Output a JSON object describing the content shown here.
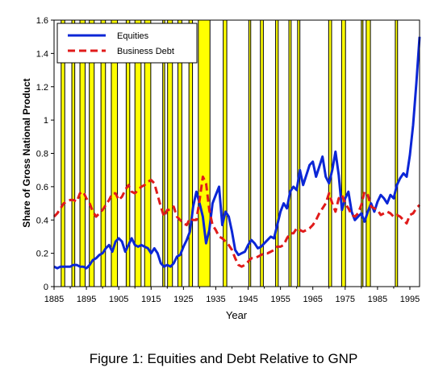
{
  "caption": "Figure 1: Equities and Debt Relative to GNP",
  "chart_data": {
    "type": "line",
    "title": "",
    "xlabel": "Year",
    "ylabel": "Share of Gross National Product",
    "xlim": [
      1885,
      1998
    ],
    "ylim": [
      0,
      1.6
    ],
    "x_ticks": [
      "1885",
      "1895",
      "1905",
      "1915",
      "1925",
      "1935",
      "1945",
      "1955",
      "1965",
      "1975",
      "1985",
      "1995"
    ],
    "x_tick_values": [
      1885,
      1895,
      1905,
      1915,
      1925,
      1935,
      1945,
      1955,
      1965,
      1975,
      1985,
      1995
    ],
    "y_ticks": [
      "0",
      "0.2",
      "0.4",
      "0.6",
      "0.8",
      "1",
      "1.2",
      "1.4",
      "1.6"
    ],
    "y_tick_values": [
      0,
      0.2,
      0.4,
      0.6,
      0.8,
      1,
      1.2,
      1.4,
      1.6
    ],
    "grid": false,
    "legend_position": "top-left",
    "recession_bands": [
      [
        1887.2,
        1888.3
      ],
      [
        1890.5,
        1891.4
      ],
      [
        1893.0,
        1894.6
      ],
      [
        1895.9,
        1897.4
      ],
      [
        1899.5,
        1900.9
      ],
      [
        1902.7,
        1904.6
      ],
      [
        1907.3,
        1908.4
      ],
      [
        1910.0,
        1911.9
      ],
      [
        1913.0,
        1914.9
      ],
      [
        1918.6,
        1919.2
      ],
      [
        1920.1,
        1921.6
      ],
      [
        1923.3,
        1924.5
      ],
      [
        1926.7,
        1927.8
      ],
      [
        1929.6,
        1933.2
      ],
      [
        1937.3,
        1938.4
      ],
      [
        1945.2,
        1945.8
      ],
      [
        1948.8,
        1949.7
      ],
      [
        1953.5,
        1954.3
      ],
      [
        1957.6,
        1958.3
      ],
      [
        1960.3,
        1961.0
      ],
      [
        1969.9,
        1970.8
      ],
      [
        1973.9,
        1975.1
      ],
      [
        1980.0,
        1980.5
      ],
      [
        1981.5,
        1982.8
      ],
      [
        1990.5,
        1991.2
      ]
    ],
    "series": [
      {
        "name": "Equities",
        "color": "#0b26d6",
        "style": "solid",
        "x": [
          1885,
          1886,
          1887,
          1888,
          1889,
          1890,
          1891,
          1892,
          1893,
          1894,
          1895,
          1896,
          1897,
          1898,
          1899,
          1900,
          1901,
          1902,
          1903,
          1904,
          1905,
          1906,
          1907,
          1908,
          1909,
          1910,
          1911,
          1912,
          1913,
          1914,
          1915,
          1916,
          1917,
          1918,
          1919,
          1920,
          1921,
          1922,
          1923,
          1924,
          1925,
          1926,
          1927,
          1928,
          1929,
          1930,
          1931,
          1932,
          1933,
          1934,
          1935,
          1936,
          1937,
          1938,
          1939,
          1940,
          1941,
          1942,
          1943,
          1944,
          1945,
          1946,
          1947,
          1948,
          1949,
          1950,
          1951,
          1952,
          1953,
          1954,
          1955,
          1956,
          1957,
          1958,
          1959,
          1960,
          1961,
          1962,
          1963,
          1964,
          1965,
          1966,
          1967,
          1968,
          1969,
          1970,
          1971,
          1972,
          1973,
          1974,
          1975,
          1976,
          1977,
          1978,
          1979,
          1980,
          1981,
          1982,
          1983,
          1984,
          1985,
          1986,
          1987,
          1988,
          1989,
          1990,
          1991,
          1992,
          1993,
          1994,
          1995,
          1996,
          1997,
          1998
        ],
        "y": [
          0.12,
          0.11,
          0.12,
          0.12,
          0.12,
          0.12,
          0.13,
          0.13,
          0.12,
          0.12,
          0.11,
          0.13,
          0.16,
          0.17,
          0.19,
          0.2,
          0.23,
          0.25,
          0.21,
          0.27,
          0.29,
          0.27,
          0.21,
          0.25,
          0.29,
          0.25,
          0.24,
          0.25,
          0.24,
          0.23,
          0.2,
          0.23,
          0.2,
          0.14,
          0.12,
          0.13,
          0.12,
          0.14,
          0.18,
          0.19,
          0.24,
          0.28,
          0.33,
          0.48,
          0.57,
          0.5,
          0.42,
          0.26,
          0.34,
          0.5,
          0.55,
          0.6,
          0.37,
          0.45,
          0.42,
          0.33,
          0.22,
          0.19,
          0.2,
          0.21,
          0.25,
          0.28,
          0.26,
          0.23,
          0.24,
          0.26,
          0.28,
          0.3,
          0.29,
          0.37,
          0.45,
          0.5,
          0.47,
          0.57,
          0.6,
          0.58,
          0.7,
          0.61,
          0.67,
          0.73,
          0.75,
          0.66,
          0.72,
          0.78,
          0.66,
          0.62,
          0.7,
          0.81,
          0.67,
          0.46,
          0.53,
          0.57,
          0.45,
          0.4,
          0.42,
          0.44,
          0.39,
          0.45,
          0.5,
          0.45,
          0.51,
          0.55,
          0.53,
          0.5,
          0.55,
          0.53,
          0.61,
          0.65,
          0.68,
          0.66,
          0.79,
          0.97,
          1.22,
          1.5
        ]
      },
      {
        "name": "Business Debt",
        "color": "#e01b1b",
        "style": "dashed",
        "x": [
          1885,
          1886,
          1887,
          1888,
          1889,
          1890,
          1891,
          1892,
          1893,
          1894,
          1895,
          1896,
          1897,
          1898,
          1899,
          1900,
          1901,
          1902,
          1903,
          1904,
          1905,
          1906,
          1907,
          1908,
          1909,
          1910,
          1911,
          1912,
          1913,
          1914,
          1915,
          1916,
          1917,
          1918,
          1919,
          1920,
          1921,
          1922,
          1923,
          1924,
          1925,
          1926,
          1927,
          1928,
          1929,
          1930,
          1931,
          1932,
          1933,
          1934,
          1935,
          1936,
          1937,
          1938,
          1939,
          1940,
          1941,
          1942,
          1943,
          1944,
          1945,
          1946,
          1947,
          1948,
          1949,
          1950,
          1951,
          1952,
          1953,
          1954,
          1955,
          1956,
          1957,
          1958,
          1959,
          1960,
          1961,
          1962,
          1963,
          1964,
          1965,
          1966,
          1967,
          1968,
          1969,
          1970,
          1971,
          1972,
          1973,
          1974,
          1975,
          1976,
          1977,
          1978,
          1979,
          1980,
          1981,
          1982,
          1983,
          1984,
          1985,
          1986,
          1987,
          1988,
          1989,
          1990,
          1991,
          1992,
          1993,
          1994,
          1995,
          1996,
          1997,
          1998
        ],
        "y": [
          0.42,
          0.44,
          0.47,
          0.5,
          0.51,
          0.52,
          0.52,
          0.51,
          0.56,
          0.57,
          0.53,
          0.5,
          0.45,
          0.42,
          0.44,
          0.46,
          0.49,
          0.52,
          0.56,
          0.56,
          0.52,
          0.54,
          0.58,
          0.61,
          0.57,
          0.56,
          0.58,
          0.6,
          0.61,
          0.63,
          0.64,
          0.62,
          0.55,
          0.48,
          0.42,
          0.46,
          0.46,
          0.48,
          0.42,
          0.4,
          0.38,
          0.37,
          0.41,
          0.4,
          0.4,
          0.52,
          0.66,
          0.62,
          0.46,
          0.37,
          0.34,
          0.3,
          0.29,
          0.27,
          0.25,
          0.22,
          0.17,
          0.13,
          0.12,
          0.13,
          0.15,
          0.17,
          0.17,
          0.18,
          0.19,
          0.2,
          0.2,
          0.21,
          0.22,
          0.24,
          0.24,
          0.25,
          0.29,
          0.32,
          0.32,
          0.35,
          0.34,
          0.33,
          0.34,
          0.35,
          0.37,
          0.4,
          0.44,
          0.47,
          0.5,
          0.56,
          0.5,
          0.45,
          0.53,
          0.55,
          0.5,
          0.47,
          0.43,
          0.42,
          0.44,
          0.49,
          0.57,
          0.55,
          0.48,
          0.47,
          0.46,
          0.43,
          0.44,
          0.45,
          0.44,
          0.42,
          0.43,
          0.42,
          0.4,
          0.38,
          0.43,
          0.44,
          0.47,
          0.49
        ]
      }
    ]
  }
}
